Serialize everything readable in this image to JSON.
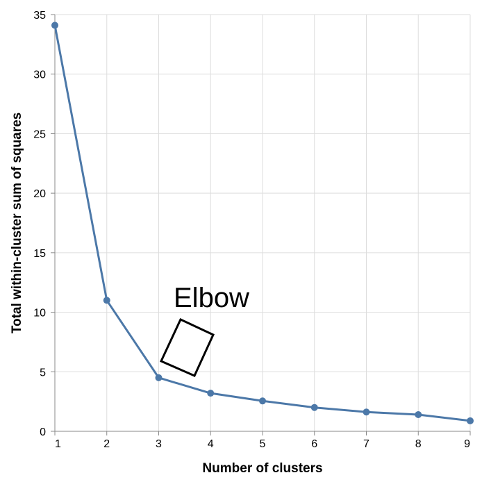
{
  "chart_data": {
    "type": "line",
    "xlabel": "Number of clusters",
    "ylabel": "Total within-cluster sum of squares",
    "x": [
      1,
      2,
      3,
      4,
      5,
      6,
      7,
      8,
      9
    ],
    "series": [
      {
        "values": [
          34.1,
          11.0,
          4.5,
          3.2,
          2.55,
          2.0,
          1.62,
          1.4,
          0.88
        ],
        "color": "#4c78a8"
      }
    ],
    "xlim": [
      1,
      9
    ],
    "ylim": [
      0,
      35
    ],
    "xticks": [
      1,
      2,
      3,
      4,
      5,
      6,
      7,
      8,
      9
    ],
    "yticks": [
      0,
      5,
      10,
      15,
      20,
      25,
      30,
      35
    ],
    "grid": true,
    "annotations": [
      {
        "text": "Elbow",
        "shape": "rotated-square",
        "near_x": 3.5,
        "near_y": 7
      }
    ]
  }
}
